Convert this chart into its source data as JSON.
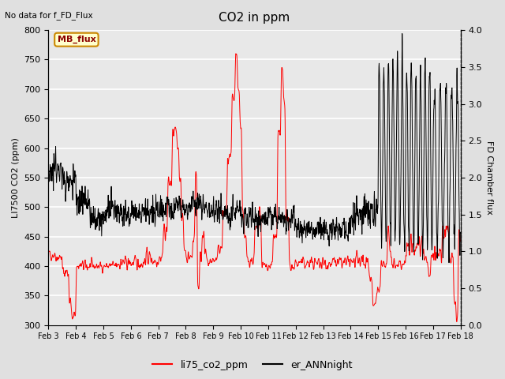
{
  "title": "CO2 in ppm",
  "ylabel_left": "LI7500 CO2 (ppm)",
  "ylabel_right": "FD Chamber flux",
  "ylim_left": [
    300,
    800
  ],
  "ylim_right": [
    0.0,
    4.0
  ],
  "yticks_left": [
    300,
    350,
    400,
    450,
    500,
    550,
    600,
    650,
    700,
    750,
    800
  ],
  "yticks_right": [
    0.0,
    0.5,
    1.0,
    1.5,
    2.0,
    2.5,
    3.0,
    3.5,
    4.0
  ],
  "xlabel_ticks": [
    "Feb 3",
    "Feb 4",
    "Feb 5",
    "Feb 6",
    "Feb 7",
    "Feb 8",
    "Feb 9",
    "Feb 10",
    "Feb 11",
    "Feb 12",
    "Feb 13",
    "Feb 14",
    "Feb 15",
    "Feb 16",
    "Feb 17",
    "Feb 18"
  ],
  "note_text": "No data for f_FD_Flux",
  "mb_flux_label": "MB_flux",
  "legend_labels": [
    "li75_co2_ppm",
    "er_ANNnight"
  ],
  "line_colors": [
    "red",
    "black"
  ],
  "fig_bg_color": "#e0e0e0",
  "plot_bg_color": "#e8e8e8",
  "plot_bg_top": "#d0d0d0",
  "grid_color": "white"
}
